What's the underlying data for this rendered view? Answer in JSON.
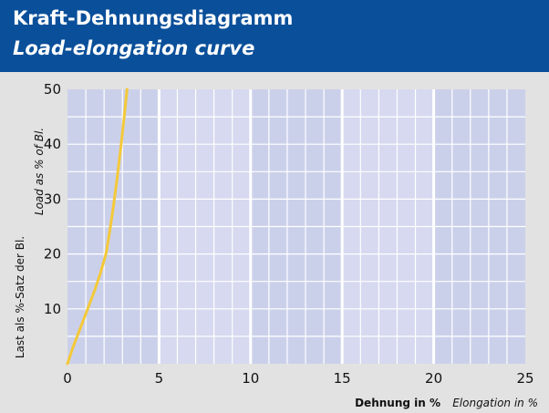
{
  "header": {
    "title": "Kraft-Dehnungsdiagramm",
    "subtitle": "Load-elongation curve"
  },
  "chart_data": {
    "type": "line",
    "title": "Kraft-Dehnungsdiagramm",
    "subtitle": "Load-elongation curve",
    "xlabel": {
      "de": "Dehnung in %",
      "en": "Elongation in %"
    },
    "ylabel": {
      "de": "Last als %-Satz der Bl.",
      "en": "Load as % of Bl."
    },
    "xlim": [
      0,
      25
    ],
    "ylim": [
      0,
      50
    ],
    "xticks": [
      "0",
      "5",
      "10",
      "15",
      "20",
      "25"
    ],
    "yticks": [
      "10",
      "20",
      "30",
      "40",
      "50"
    ],
    "grid": true,
    "series": [
      {
        "color": "#f4c93a",
        "x": [
          0,
          0.3,
          0.7,
          1.1,
          1.5,
          1.8,
          2.1,
          2.3,
          2.5,
          2.7,
          2.9,
          3.1,
          3.25
        ],
        "y": [
          0,
          3,
          6.5,
          10,
          13.5,
          16.5,
          20,
          24,
          28.5,
          33.5,
          39,
          45,
          50
        ]
      }
    ],
    "colors": {
      "header": "#0a4f9a",
      "frame": "#e2e2e2",
      "plot_light": "#d6d9ef",
      "plot_dark": "#cbd0ea",
      "gridline": "#ffffff",
      "curve": "#f4c93a"
    }
  }
}
